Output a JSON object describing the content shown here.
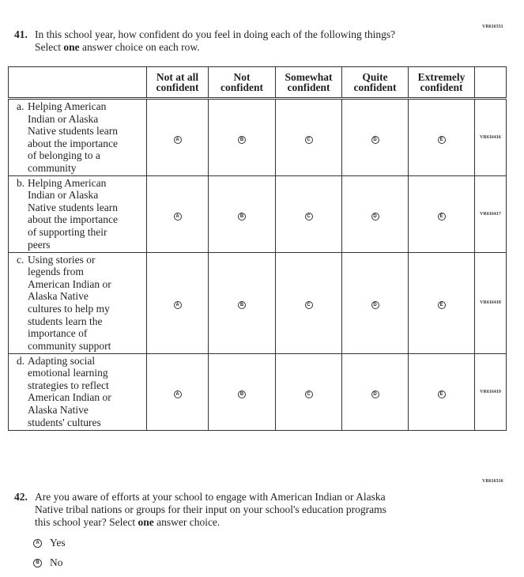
{
  "q41": {
    "code": "VR616331",
    "number": "41.",
    "text_line1": "In this school year, how confident do you feel in doing each of the following things?",
    "text_line2_pre": "Select ",
    "text_line2_bold": "one",
    "text_line2_post": " answer choice on each row.",
    "columns": [
      "Not at all\nconfident",
      "Not\nconfident",
      "Somewhat\nconfident",
      "Quite\nconfident",
      "Extremely\nconfident"
    ],
    "bubbles": [
      "A",
      "B",
      "C",
      "D",
      "E"
    ],
    "rows": [
      {
        "letter": "a.",
        "text": "Helping American\nIndian or Alaska\nNative students learn\nabout the importance\nof belonging to a\ncommunity",
        "code": "VR616416"
      },
      {
        "letter": "b.",
        "text": "Helping American\nIndian or Alaska\nNative students learn\nabout the importance\nof supporting their\npeers",
        "code": "VR616417"
      },
      {
        "letter": "c.",
        "text": "Using stories or\nlegends from\nAmerican Indian or\nAlaska Native\ncultures to help my\nstudents learn the\nimportance of\ncommunity support",
        "code": "VR616418"
      },
      {
        "letter": "d.",
        "text": "Adapting social\nemotional learning\nstrategies to reflect\nAmerican Indian or\nAlaska Native\nstudents' cultures",
        "code": "VR616419"
      }
    ]
  },
  "q42": {
    "code": "VR616316",
    "number": "42.",
    "text_line1": "Are you aware of efforts at your school to engage with American Indian or Alaska",
    "text_line2": "Native tribal nations or groups for their input on your school's education programs",
    "text_line3_pre": "this school year? Select ",
    "text_line3_bold": "one",
    "text_line3_post": " answer choice.",
    "options": [
      {
        "bubble": "A",
        "label": "Yes"
      },
      {
        "bubble": "B",
        "label": "No"
      }
    ]
  }
}
